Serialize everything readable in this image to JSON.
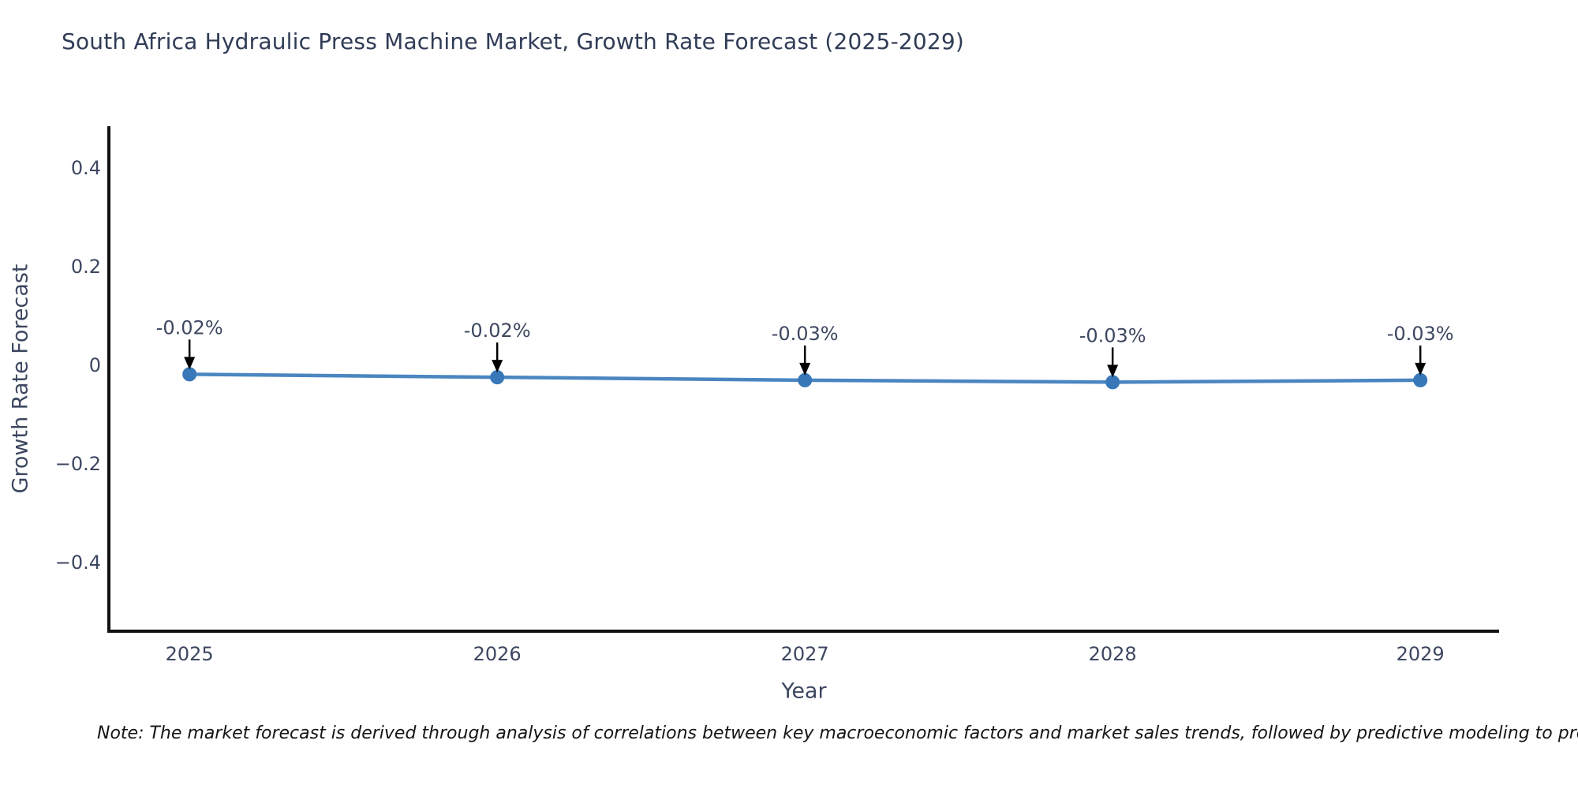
{
  "title": "South Africa Hydraulic Press Machine Market, Growth Rate Forecast (2025-2029)",
  "note": "Note: The market forecast is derived through analysis of correlations between key macroeconomic factors and market sales trends, followed by predictive modeling to project future sales",
  "chart_data": {
    "type": "line",
    "title": "South Africa Hydraulic Press Machine Market, Growth Rate Forecast (2025-2029)",
    "xlabel": "Year",
    "ylabel": "Growth Rate Forecast",
    "x": [
      2025,
      2026,
      2027,
      2028,
      2029
    ],
    "values": [
      -0.018,
      -0.024,
      -0.03,
      -0.034,
      -0.03
    ],
    "point_labels": [
      "-0.02%",
      "-0.02%",
      "-0.03%",
      "-0.03%",
      "-0.03%"
    ],
    "x_tick_labels": [
      "2025",
      "2026",
      "2027",
      "2028",
      "2029"
    ],
    "y_ticks": [
      0.4,
      0.2,
      0,
      -0.2,
      -0.4
    ],
    "y_tick_labels": [
      "0.4",
      "0.2",
      "0",
      "−0.2",
      "−0.4"
    ],
    "xlim": [
      2024.738,
      2029.256
    ],
    "ylim": [
      -0.539,
      0.485
    ],
    "grid": false,
    "legend": "none",
    "line_color": "#4a86c0",
    "marker_color": "#3877b8",
    "spine_color": "#111111",
    "arrow_color": "#000000"
  }
}
